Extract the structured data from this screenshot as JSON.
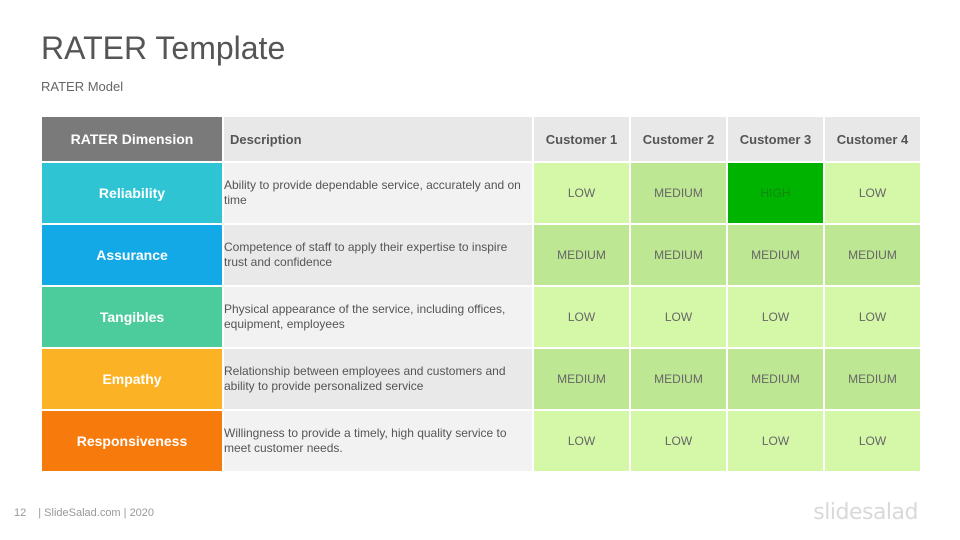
{
  "slide": {
    "title": "RATER Template",
    "subtitle": "RATER Model"
  },
  "table": {
    "headers": {
      "dimension": "RATER Dimension",
      "description": "Description",
      "customers": [
        "Customer 1",
        "Customer 2",
        "Customer 3",
        "Customer 4"
      ]
    },
    "rows": [
      {
        "dimension": "Reliability",
        "color": "#2ec4d3",
        "description": "Ability to provide dependable service, accurately and on time",
        "ratings": [
          "LOW",
          "MEDIUM",
          "HIGH",
          "LOW"
        ]
      },
      {
        "dimension": "Assurance",
        "color": "#13a8e6",
        "description": "Competence of staff to apply their expertise to inspire trust and confidence",
        "ratings": [
          "MEDIUM",
          "MEDIUM",
          "MEDIUM",
          "MEDIUM"
        ]
      },
      {
        "dimension": "Tangibles",
        "color": "#4ccb9d",
        "description": "Physical appearance of the service, including offices, equipment, employees",
        "ratings": [
          "LOW",
          "LOW",
          "LOW",
          "LOW"
        ]
      },
      {
        "dimension": "Empathy",
        "color": "#fbb325",
        "description": "Relationship between employees and customers and ability to provide personalized service",
        "ratings": [
          "MEDIUM",
          "MEDIUM",
          "MEDIUM",
          "MEDIUM"
        ]
      },
      {
        "dimension": "Responsiveness",
        "color": "#f77a0c",
        "description": "Willingness to provide a timely, high quality service to meet customer needs.",
        "ratings": [
          "LOW",
          "LOW",
          "LOW",
          "LOW"
        ]
      }
    ]
  },
  "footer": {
    "page_number": "12",
    "text": "| SlideSalad.com | 2020",
    "logo": "slidesalad"
  }
}
